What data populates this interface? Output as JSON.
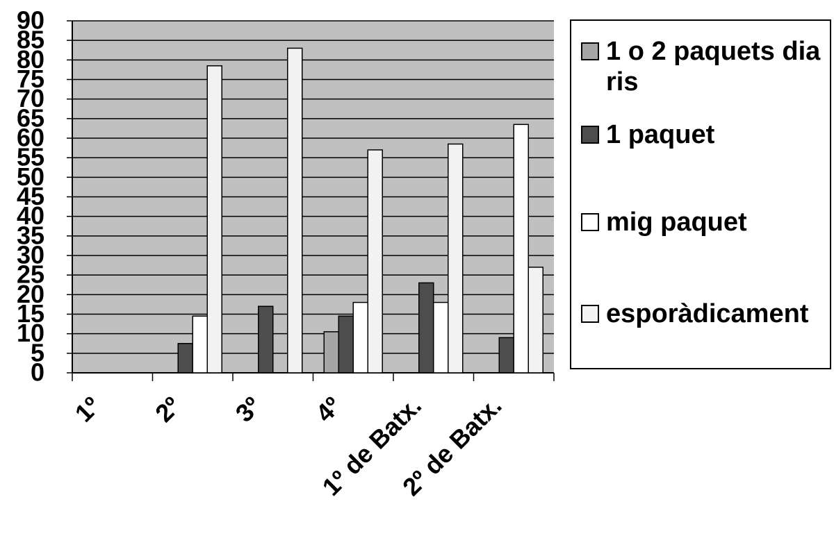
{
  "chart_data": {
    "type": "bar",
    "categories": [
      "1º",
      "2º",
      "3º",
      "4º",
      "1º de Batx.",
      "2º de Batx."
    ],
    "series": [
      {
        "name": "1 o 2 paquets diaris",
        "color": "#a6a6a6",
        "values": [
          0,
          0,
          0,
          10.5,
          0,
          0
        ]
      },
      {
        "name": "1 paquet",
        "color": "#4d4d4d",
        "values": [
          0,
          7.5,
          17,
          14.5,
          23,
          9
        ]
      },
      {
        "name": "mig paquet",
        "color": "#ffffff",
        "values": [
          0,
          14.5,
          0,
          18,
          18,
          63.5
        ]
      },
      {
        "name": "esporàdicament",
        "color": "#f2f2f2",
        "values": [
          0,
          78.5,
          83,
          57,
          58.5,
          27
        ]
      }
    ],
    "ylim": [
      0,
      90
    ],
    "yticks": [
      0,
      5,
      10,
      15,
      20,
      25,
      30,
      35,
      40,
      45,
      50,
      55,
      60,
      65,
      70,
      75,
      80,
      85,
      90
    ],
    "grid": true,
    "legend": "right"
  }
}
